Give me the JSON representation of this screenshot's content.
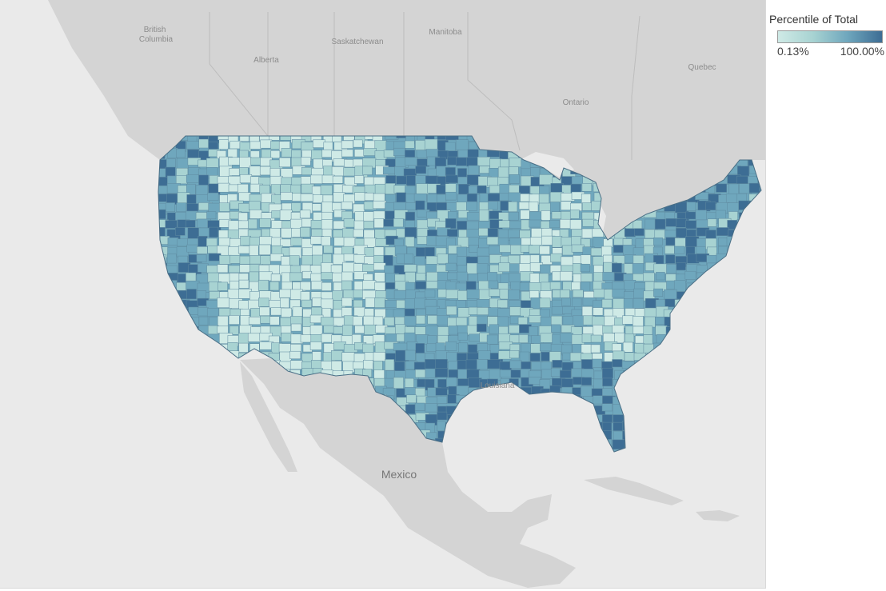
{
  "legend": {
    "title": "Percentile of Total",
    "min_label": "0.13%",
    "max_label": "100.00%",
    "colors": [
      "#cfeae6",
      "#a8d3d2",
      "#6fa7bd",
      "#3d6d94"
    ]
  },
  "map": {
    "base_land_color": "#d4d4d4",
    "water_color": "#eaeaea",
    "labels": {
      "british_columbia": [
        "British",
        "Columbia"
      ],
      "alberta": "Alberta",
      "saskatchewan": "Saskatchewan",
      "manitoba": "Manitoba",
      "ontario": "Ontario",
      "quebec": "Quebec",
      "louisiana": "Louisiana",
      "mexico": "Mexico"
    }
  }
}
